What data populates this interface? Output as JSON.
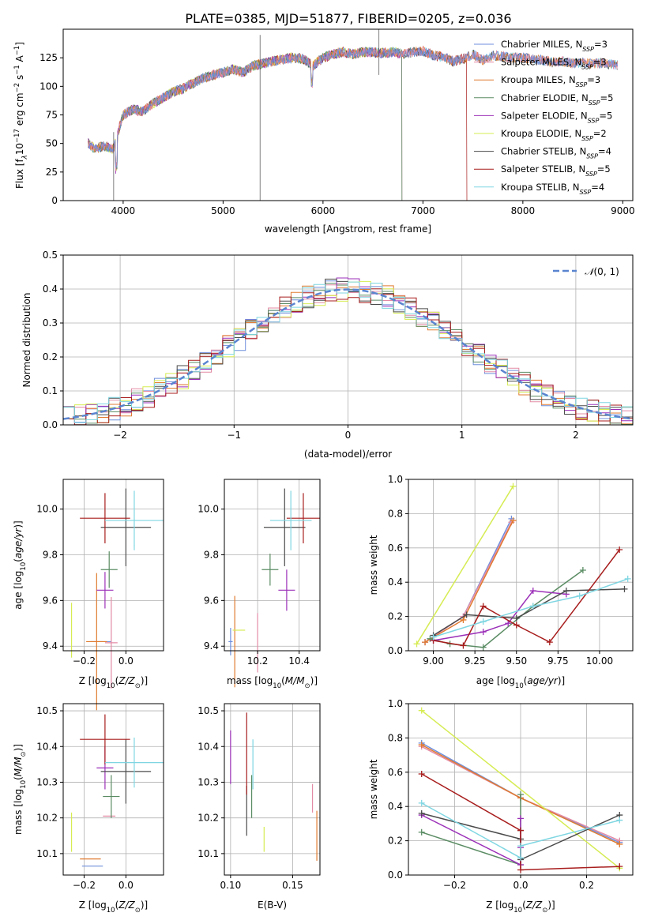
{
  "figure": {
    "title": "PLATE=0385, MJD=51877, FIBERID=0205, z=0.036"
  },
  "series": [
    {
      "name": "Chabrier MILES, N_SSP=3",
      "label": "Chabrier MILES, N",
      "nssp": "3",
      "color": "#6f8fdc"
    },
    {
      "name": "Salpeter MILES, N_SSP=3",
      "label": "Salpeter MILES, N",
      "nssp": "3",
      "color": "#e38ba6"
    },
    {
      "name": "Kroupa MILES, N_SSP=3",
      "label": "Kroupa MILES, N",
      "nssp": "3",
      "color": "#e07b30"
    },
    {
      "name": "Chabrier ELODIE, N_SSP=5",
      "label": "Chabrier ELODIE, N",
      "nssp": "5",
      "color": "#5a8c63"
    },
    {
      "name": "Salpeter ELODIE, N_SSP=5",
      "label": "Salpeter ELODIE, N",
      "nssp": "5",
      "color": "#9b2fb8"
    },
    {
      "name": "Kroupa ELODIE, N_SSP=2",
      "label": "Kroupa ELODIE, N",
      "nssp": "2",
      "color": "#d6ec52"
    },
    {
      "name": "Chabrier STELIB, N_SSP=4",
      "label": "Chabrier STELIB, N",
      "nssp": "4",
      "color": "#4b4b4b"
    },
    {
      "name": "Salpeter STELIB, N_SSP=5",
      "label": "Salpeter STELIB, N",
      "nssp": "5",
      "color": "#a81d1d"
    },
    {
      "name": "Kroupa STELIB, N_SSP=4",
      "label": "Kroupa STELIB, N",
      "nssp": "4",
      "color": "#7fd6e2"
    }
  ],
  "chart_data": [
    {
      "id": "spectrum",
      "type": "line",
      "xlabel": "wavelength [Angstrom, rest frame]",
      "ylabel": "Flux [f_λ 10^-17 erg cm^-2 s^-1 A^-1]",
      "ylabel_parts": {
        "pre": "Flux [f",
        "sub1": "λ",
        "mid": "10",
        "sup1": "−17",
        "mid2": " erg cm",
        "sup2": "−2",
        "mid3": " s",
        "sup3": "−1",
        "mid4": " A",
        "sup4": "−1",
        "post": "]"
      },
      "xlim": [
        3400,
        9100
      ],
      "ylim": [
        0,
        150
      ],
      "xticks": [
        4000,
        5000,
        6000,
        7000,
        8000,
        9000
      ],
      "yticks": [
        0,
        25,
        50,
        75,
        100,
        125
      ],
      "continuum": [
        [
          3650,
          50
        ],
        [
          3720,
          45
        ],
        [
          3800,
          48
        ],
        [
          3900,
          45
        ],
        [
          3950,
          60
        ],
        [
          4000,
          75
        ],
        [
          4100,
          80
        ],
        [
          4200,
          78
        ],
        [
          4300,
          85
        ],
        [
          4400,
          90
        ],
        [
          4500,
          95
        ],
        [
          4600,
          98
        ],
        [
          4700,
          103
        ],
        [
          4800,
          107
        ],
        [
          4900,
          110
        ],
        [
          5000,
          112
        ],
        [
          5100,
          115
        ],
        [
          5200,
          112
        ],
        [
          5300,
          118
        ],
        [
          5400,
          120
        ],
        [
          5500,
          122
        ],
        [
          5600,
          124
        ],
        [
          5700,
          125
        ],
        [
          5800,
          124
        ],
        [
          5900,
          118
        ],
        [
          6000,
          125
        ],
        [
          6100,
          128
        ],
        [
          6200,
          130
        ],
        [
          6300,
          128
        ],
        [
          6400,
          130
        ],
        [
          6500,
          130
        ],
        [
          6600,
          129
        ],
        [
          6700,
          130
        ],
        [
          6800,
          128
        ],
        [
          6900,
          130
        ],
        [
          7000,
          131
        ],
        [
          7100,
          127
        ],
        [
          7200,
          126
        ],
        [
          7300,
          122
        ],
        [
          7400,
          124
        ],
        [
          7500,
          128
        ],
        [
          7600,
          123
        ],
        [
          7700,
          127
        ],
        [
          7800,
          126
        ],
        [
          7900,
          125
        ],
        [
          8000,
          125
        ],
        [
          8100,
          124
        ],
        [
          8200,
          123
        ],
        [
          8300,
          121
        ],
        [
          8400,
          122
        ],
        [
          8500,
          120
        ],
        [
          8600,
          121
        ],
        [
          8700,
          120
        ],
        [
          8800,
          120
        ],
        [
          8900,
          119
        ]
      ],
      "spectrum_end": {
        "Salpeter STELIB": 7440,
        "Chabrier ELODIE": 6790,
        "Salpeter ELODIE": 6790,
        "Kroupa ELODIE": 6790
      }
    },
    {
      "id": "residuals",
      "type": "histogram",
      "xlabel": "(data-model)/error",
      "ylabel": "Normed distribution",
      "xlim": [
        -2.5,
        2.5
      ],
      "ylim": [
        0,
        0.5
      ],
      "xticks": [
        -2,
        -1,
        0,
        1,
        2
      ],
      "yticks": [
        0.0,
        0.1,
        0.2,
        0.3,
        0.4,
        0.5
      ],
      "legend": "N(0,1)",
      "legend_parts": {
        "pre": "𝒩",
        "post": "(0, 1)"
      },
      "legend_loc": "upper right",
      "bin_width": 0.1
    },
    {
      "id": "age_vs_Z",
      "type": "errorbar",
      "xlabel": "Z [log10(Z/Z_sun)]",
      "ylabel": "age  [log10(age/yr)]",
      "xlim": [
        -0.3,
        0.18
      ],
      "ylim": [
        9.38,
        10.13
      ],
      "xticks": [
        -0.2,
        0.0
      ],
      "yticks": [
        9.4,
        9.6,
        9.8,
        10.0
      ],
      "points": [
        {
          "series": 0,
          "x": -0.12,
          "y": 9.42,
          "xerr": 0.05,
          "yerr": 0.0
        },
        {
          "series": 1,
          "x": -0.07,
          "y": 9.415,
          "xerr": 0.03,
          "yerr": 0.2
        },
        {
          "series": 2,
          "x": -0.14,
          "y": 9.42,
          "xerr": 0.05,
          "yerr": 0.3
        },
        {
          "series": 3,
          "x": -0.08,
          "y": 9.735,
          "xerr": 0.04,
          "yerr": 0.08
        },
        {
          "series": 4,
          "x": -0.1,
          "y": 9.645,
          "xerr": 0.04,
          "yerr": 0.08
        },
        {
          "series": 5,
          "x": -0.26,
          "y": 9.47,
          "xerr": 0.0,
          "yerr": 0.12
        },
        {
          "series": 6,
          "x": 0.0,
          "y": 9.92,
          "xerr": 0.12,
          "yerr": 0.17
        },
        {
          "series": 7,
          "x": -0.1,
          "y": 9.96,
          "xerr": 0.12,
          "yerr": 0.11
        },
        {
          "series": 8,
          "x": 0.04,
          "y": 9.95,
          "xerr": 0.14,
          "yerr": 0.13
        }
      ]
    },
    {
      "id": "age_vs_mass",
      "type": "errorbar",
      "xlabel": "mass [log10(M/M_sun)]",
      "ylabel": "",
      "xlim": [
        10.04,
        10.5
      ],
      "ylim": [
        9.38,
        10.13
      ],
      "xticks": [
        10.2,
        10.4
      ],
      "yticks": [
        9.4,
        9.6,
        9.8,
        10.0
      ],
      "points": [
        {
          "series": 0,
          "x": 10.07,
          "y": 9.42,
          "xerr": 0.01,
          "yerr": 0.06
        },
        {
          "series": 1,
          "x": 10.2,
          "y": 9.415,
          "xerr": 0.0,
          "yerr": 0.13
        },
        {
          "series": 2,
          "x": 10.09,
          "y": 9.42,
          "xerr": 0.0,
          "yerr": 0.2
        },
        {
          "series": 3,
          "x": 10.26,
          "y": 9.735,
          "xerr": 0.04,
          "yerr": 0.07
        },
        {
          "series": 4,
          "x": 10.34,
          "y": 9.645,
          "xerr": 0.04,
          "yerr": 0.09
        },
        {
          "series": 5,
          "x": 10.11,
          "y": 9.47,
          "xerr": 0.03,
          "yerr": 0.0
        },
        {
          "series": 6,
          "x": 10.33,
          "y": 9.92,
          "xerr": 0.1,
          "yerr": 0.17
        },
        {
          "series": 7,
          "x": 10.42,
          "y": 9.96,
          "xerr": 0.08,
          "yerr": 0.11
        },
        {
          "series": 8,
          "x": 10.36,
          "y": 9.95,
          "xerr": 0.1,
          "yerr": 0.13
        }
      ]
    },
    {
      "id": "massweight_vs_age",
      "type": "line",
      "xlabel": "age  [log10(age/yr)]",
      "ylabel": "mass weight",
      "xlim": [
        8.85,
        10.2
      ],
      "ylim": [
        0,
        1
      ],
      "xticks": [
        9.0,
        9.25,
        9.5,
        9.75,
        10.0
      ],
      "yticks": [
        0.0,
        0.2,
        0.4,
        0.6,
        0.8,
        1.0
      ],
      "lines": [
        {
          "series": 0,
          "x": [
            8.95,
            9.18,
            9.47
          ],
          "y": [
            0.05,
            0.2,
            0.77
          ]
        },
        {
          "series": 1,
          "x": [
            8.95,
            9.18,
            9.47
          ],
          "y": [
            0.05,
            0.2,
            0.75
          ]
        },
        {
          "series": 2,
          "x": [
            8.95,
            9.18,
            9.48
          ],
          "y": [
            0.05,
            0.18,
            0.76
          ]
        },
        {
          "series": 3,
          "x": [
            8.98,
            9.1,
            9.3,
            9.6,
            9.9
          ],
          "y": [
            0.07,
            0.04,
            0.02,
            0.26,
            0.47
          ]
        },
        {
          "series": 4,
          "x": [
            9.0,
            9.3,
            9.45,
            9.6,
            9.8
          ],
          "y": [
            0.06,
            0.11,
            0.16,
            0.35,
            0.33
          ]
        },
        {
          "series": 5,
          "x": [
            8.9,
            9.48
          ],
          "y": [
            0.04,
            0.96
          ]
        },
        {
          "series": 6,
          "x": [
            9.0,
            9.2,
            9.5,
            9.8,
            10.15
          ],
          "y": [
            0.09,
            0.21,
            0.19,
            0.35,
            0.36
          ]
        },
        {
          "series": 7,
          "x": [
            9.0,
            9.18,
            9.3,
            9.5,
            9.7,
            10.12
          ],
          "y": [
            0.06,
            0.03,
            0.26,
            0.15,
            0.05,
            0.59
          ]
        },
        {
          "series": 8,
          "x": [
            9.0,
            9.3,
            9.6,
            9.88,
            10.17
          ],
          "y": [
            0.08,
            0.17,
            0.26,
            0.32,
            0.42
          ]
        }
      ]
    },
    {
      "id": "mass_vs_Z",
      "type": "errorbar",
      "xlabel": "Z [log10(Z/Z_sun)]",
      "ylabel": "mass [log10(M/M_sun)]",
      "xlim": [
        -0.3,
        0.18
      ],
      "ylim": [
        10.04,
        10.52
      ],
      "xticks": [
        -0.2,
        0.0
      ],
      "yticks": [
        10.1,
        10.2,
        10.3,
        10.4,
        10.5
      ],
      "points": [
        {
          "series": 0,
          "x": -0.16,
          "y": 10.065,
          "xerr": 0.05,
          "yerr": 0.0
        },
        {
          "series": 1,
          "x": -0.08,
          "y": 10.205,
          "xerr": 0.03,
          "yerr": 0.0
        },
        {
          "series": 2,
          "x": -0.17,
          "y": 10.085,
          "xerr": 0.05,
          "yerr": 0.0
        },
        {
          "series": 3,
          "x": -0.07,
          "y": 10.26,
          "xerr": 0.04,
          "yerr": 0.06
        },
        {
          "series": 4,
          "x": -0.1,
          "y": 10.34,
          "xerr": 0.04,
          "yerr": 0.06
        },
        {
          "series": 5,
          "x": -0.26,
          "y": 10.16,
          "xerr": 0.0,
          "yerr": 0.055
        },
        {
          "series": 6,
          "x": 0.0,
          "y": 10.33,
          "xerr": 0.12,
          "yerr": 0.09
        },
        {
          "series": 7,
          "x": -0.1,
          "y": 10.42,
          "xerr": 0.12,
          "yerr": 0.07
        },
        {
          "series": 8,
          "x": 0.04,
          "y": 10.355,
          "xerr": 0.14,
          "yerr": 0.07
        }
      ]
    },
    {
      "id": "mass_vs_EBV",
      "type": "errorbar",
      "xlabel": "E(B-V)",
      "ylabel": "",
      "xlim": [
        0.095,
        0.172
      ],
      "ylim": [
        10.04,
        10.52
      ],
      "xticks": [
        0.1,
        0.15
      ],
      "yticks": [
        10.1,
        10.2,
        10.3,
        10.4,
        10.5
      ],
      "points": [
        {
          "series": 0,
          "x": 0.169,
          "y": 10.065,
          "xerr": 0.0,
          "yerr": 0.0
        },
        {
          "series": 1,
          "x": 0.166,
          "y": 10.255,
          "xerr": 0.0,
          "yerr": 0.04
        },
        {
          "series": 2,
          "x": 0.1695,
          "y": 10.15,
          "xerr": 0.0,
          "yerr": 0.07
        },
        {
          "series": 3,
          "x": 0.117,
          "y": 10.26,
          "xerr": 0.0,
          "yerr": 0.06
        },
        {
          "series": 4,
          "x": 0.1,
          "y": 10.37,
          "xerr": 0.0,
          "yerr": 0.075
        },
        {
          "series": 5,
          "x": 0.127,
          "y": 10.14,
          "xerr": 0.0,
          "yerr": 0.035
        },
        {
          "series": 6,
          "x": 0.113,
          "y": 10.22,
          "xerr": 0.0,
          "yerr": 0.07
        },
        {
          "series": 7,
          "x": 0.113,
          "y": 10.38,
          "xerr": 0.0,
          "yerr": 0.115
        },
        {
          "series": 8,
          "x": 0.118,
          "y": 10.35,
          "xerr": 0.0,
          "yerr": 0.07
        }
      ]
    },
    {
      "id": "massweight_vs_Z",
      "type": "line",
      "xlabel": "Z [log10(Z/Z_sun)]",
      "ylabel": "mass weight",
      "xlim": [
        -0.34,
        0.34
      ],
      "ylim": [
        0,
        1
      ],
      "xticks": [
        -0.2,
        0.0,
        0.2
      ],
      "yticks": [
        0.0,
        0.2,
        0.4,
        0.6,
        0.8,
        1.0
      ],
      "lines": [
        {
          "series": 0,
          "x": [
            -0.3,
            0.0,
            0.3
          ],
          "y": [
            0.77,
            0.45,
            0.19
          ]
        },
        {
          "series": 1,
          "x": [
            -0.3,
            0.0,
            0.3
          ],
          "y": [
            0.75,
            0.45,
            0.2
          ]
        },
        {
          "series": 2,
          "x": [
            -0.3,
            0.0,
            0.3
          ],
          "y": [
            0.76,
            0.45,
            0.18
          ]
        },
        {
          "series": 3,
          "x": [
            -0.3,
            0.0,
            0.0,
            0.0
          ],
          "y": [
            0.25,
            0.06,
            0.47,
            0.26
          ]
        },
        {
          "series": 4,
          "x": [
            -0.3,
            0.0,
            0.0,
            0.0
          ],
          "y": [
            0.35,
            0.06,
            0.16,
            0.33
          ]
        },
        {
          "series": 5,
          "x": [
            -0.3,
            0.3
          ],
          "y": [
            0.96,
            0.04
          ]
        },
        {
          "series": 6,
          "x": [
            -0.3,
            0.0,
            0.0,
            0.3
          ],
          "y": [
            0.36,
            0.21,
            0.09,
            0.35
          ]
        },
        {
          "series": 7,
          "x": [
            -0.3,
            0.0,
            0.0,
            0.3
          ],
          "y": [
            0.59,
            0.26,
            0.03,
            0.05
          ]
        },
        {
          "series": 8,
          "x": [
            -0.3,
            0.0,
            0.0,
            0.3
          ],
          "y": [
            0.42,
            0.1,
            0.17,
            0.32
          ]
        }
      ]
    }
  ]
}
